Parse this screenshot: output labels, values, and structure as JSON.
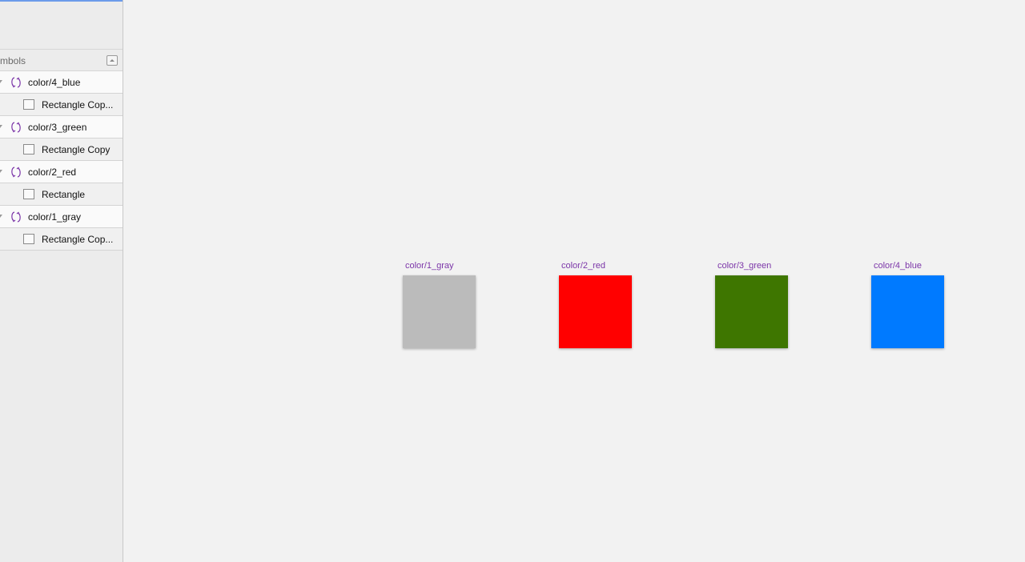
{
  "sidebar": {
    "page_header": "ymbols",
    "layers": [
      {
        "name": "color/4_blue",
        "child": "Rectangle Cop..."
      },
      {
        "name": "color/3_green",
        "child": "Rectangle Copy"
      },
      {
        "name": "color/2_red",
        "child": "Rectangle"
      },
      {
        "name": "color/1_gray",
        "child": "Rectangle Cop..."
      }
    ]
  },
  "canvas": {
    "artboards": [
      {
        "label": "color/1_gray",
        "color": "#bbbbbb"
      },
      {
        "label": "color/2_red",
        "color": "#ff0000"
      },
      {
        "label": "color/3_green",
        "color": "#3e7600"
      },
      {
        "label": "color/4_blue",
        "color": "#007aff"
      }
    ]
  },
  "colors": {
    "symbol_accent": "#7b35a8",
    "selection": "#6c9bea"
  }
}
